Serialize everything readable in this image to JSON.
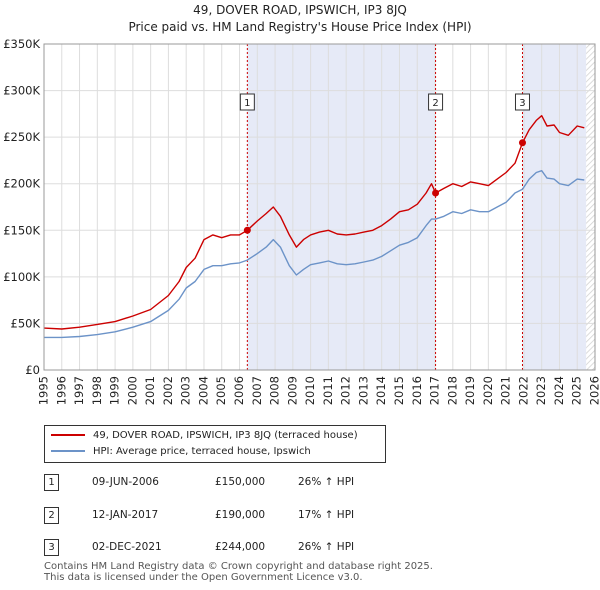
{
  "title": "49, DOVER ROAD, IPSWICH, IP3 8JQ",
  "subtitle": "Price paid vs. HM Land Registry's House Price Index (HPI)",
  "colors": {
    "property": "#cc0000",
    "hpi": "#6c93c8",
    "shade": "#e6eaf7",
    "grid": "#dddddd"
  },
  "chart_data": {
    "type": "line",
    "title": "49, DOVER ROAD, IPSWICH, IP3 8JQ",
    "xlim": [
      1995,
      2026
    ],
    "ylim": [
      0,
      350000
    ],
    "yticks": [
      0,
      50000,
      100000,
      150000,
      200000,
      250000,
      300000,
      350000
    ],
    "ytick_labels": [
      "£0",
      "£50K",
      "£100K",
      "£150K",
      "£200K",
      "£250K",
      "£300K",
      "£350K"
    ],
    "xticks": [
      1995,
      1996,
      1997,
      1998,
      1999,
      2000,
      2001,
      2002,
      2003,
      2004,
      2005,
      2006,
      2007,
      2008,
      2009,
      2010,
      2011,
      2012,
      2013,
      2014,
      2015,
      2016,
      2017,
      2018,
      2019,
      2020,
      2021,
      2022,
      2023,
      2024,
      2025,
      2026
    ],
    "shaded_ranges": [
      [
        2006.44,
        2017.03
      ],
      [
        2021.92,
        2025.5
      ]
    ],
    "forecast_start": 2025.5,
    "series": [
      {
        "name": "49, DOVER ROAD, IPSWICH, IP3 8JQ (terraced house)",
        "x": [
          1995.0,
          1996.0,
          1997.0,
          1998.0,
          1999.0,
          2000.0,
          2001.0,
          2002.0,
          2002.6,
          2003.0,
          2003.5,
          2004.0,
          2004.5,
          2005.0,
          2005.5,
          2006.0,
          2006.44,
          2007.0,
          2007.5,
          2007.9,
          2008.3,
          2008.8,
          2009.2,
          2009.6,
          2010.0,
          2010.5,
          2011.0,
          2011.5,
          2012.0,
          2012.5,
          2013.0,
          2013.5,
          2014.0,
          2014.5,
          2015.0,
          2015.5,
          2016.0,
          2016.5,
          2016.8,
          2017.03,
          2017.5,
          2018.0,
          2018.5,
          2019.0,
          2019.5,
          2020.0,
          2020.5,
          2021.0,
          2021.5,
          2021.92,
          2022.3,
          2022.7,
          2023.0,
          2023.3,
          2023.7,
          2024.0,
          2024.5,
          2025.0,
          2025.4
        ],
        "values": [
          45000,
          44000,
          46000,
          49000,
          52000,
          58000,
          65000,
          80000,
          95000,
          110000,
          120000,
          140000,
          145000,
          142000,
          145000,
          145000,
          150000,
          160000,
          168000,
          175000,
          165000,
          145000,
          132000,
          140000,
          145000,
          148000,
          150000,
          146000,
          145000,
          146000,
          148000,
          150000,
          155000,
          162000,
          170000,
          172000,
          178000,
          190000,
          200000,
          190000,
          195000,
          200000,
          197000,
          202000,
          200000,
          198000,
          205000,
          212000,
          222000,
          244000,
          258000,
          268000,
          273000,
          262000,
          263000,
          255000,
          252000,
          262000,
          260000
        ]
      },
      {
        "name": "HPI: Average price, terraced house, Ipswich",
        "x": [
          1995.0,
          1996.0,
          1997.0,
          1998.0,
          1999.0,
          2000.0,
          2001.0,
          2002.0,
          2002.6,
          2003.0,
          2003.5,
          2004.0,
          2004.5,
          2005.0,
          2005.5,
          2006.0,
          2006.44,
          2007.0,
          2007.5,
          2007.9,
          2008.3,
          2008.8,
          2009.2,
          2009.6,
          2010.0,
          2010.5,
          2011.0,
          2011.5,
          2012.0,
          2012.5,
          2013.0,
          2013.5,
          2014.0,
          2014.5,
          2015.0,
          2015.5,
          2016.0,
          2016.5,
          2016.8,
          2017.03,
          2017.5,
          2018.0,
          2018.5,
          2019.0,
          2019.5,
          2020.0,
          2020.5,
          2021.0,
          2021.5,
          2021.92,
          2022.3,
          2022.7,
          2023.0,
          2023.3,
          2023.7,
          2024.0,
          2024.5,
          2025.0,
          2025.4
        ],
        "values": [
          35000,
          35000,
          36000,
          38000,
          41000,
          46000,
          52000,
          64000,
          76000,
          88000,
          95000,
          108000,
          112000,
          112000,
          114000,
          115000,
          118000,
          125000,
          132000,
          140000,
          132000,
          112000,
          102000,
          108000,
          113000,
          115000,
          117000,
          114000,
          113000,
          114000,
          116000,
          118000,
          122000,
          128000,
          134000,
          137000,
          142000,
          155000,
          162000,
          162000,
          165000,
          170000,
          168000,
          172000,
          170000,
          170000,
          175000,
          180000,
          190000,
          194000,
          205000,
          212000,
          214000,
          206000,
          205000,
          200000,
          198000,
          205000,
          204000
        ]
      }
    ],
    "markers": [
      {
        "label": "1",
        "x": 2006.44,
        "y": 150000
      },
      {
        "label": "2",
        "x": 2017.03,
        "y": 190000
      },
      {
        "label": "3",
        "x": 2021.92,
        "y": 244000
      }
    ]
  },
  "legend": {
    "property": "49, DOVER ROAD, IPSWICH, IP3 8JQ (terraced house)",
    "hpi": "HPI: Average price, terraced house, Ipswich"
  },
  "sales": [
    {
      "num": "1",
      "date": "09-JUN-2006",
      "price": "£150,000",
      "hpi": "26% ↑ HPI"
    },
    {
      "num": "2",
      "date": "12-JAN-2017",
      "price": "£190,000",
      "hpi": "17% ↑ HPI"
    },
    {
      "num": "3",
      "date": "02-DEC-2021",
      "price": "£244,000",
      "hpi": "26% ↑ HPI"
    }
  ],
  "footer": {
    "line1": "Contains HM Land Registry data © Crown copyright and database right 2025.",
    "line2": "This data is licensed under the Open Government Licence v3.0."
  }
}
